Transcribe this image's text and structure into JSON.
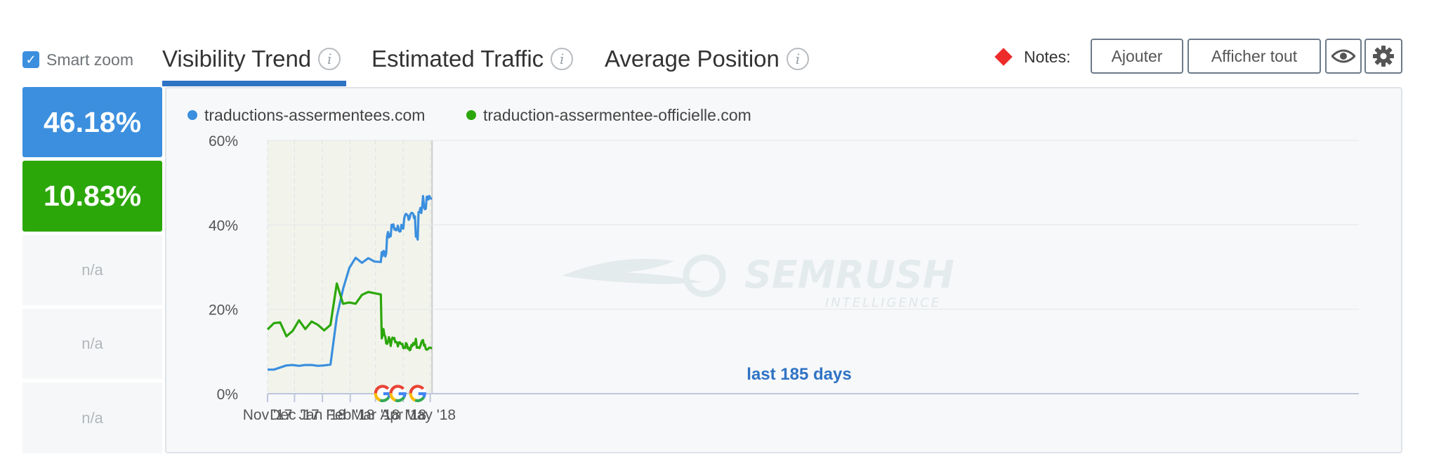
{
  "toolbar": {
    "smart_zoom_label": "Smart zoom",
    "smart_zoom_checked": true,
    "tabs": [
      {
        "label": "Visibility Trend",
        "active": true
      },
      {
        "label": "Estimated Traffic",
        "active": false
      },
      {
        "label": "Average Position",
        "active": false
      }
    ],
    "info_glyph": "i",
    "notes_label": "Notes:",
    "add_button": "Ajouter",
    "show_all_button": "Afficher tout",
    "eye_icon": "eye-icon",
    "settings_icon": "gear-icon"
  },
  "values": [
    {
      "text": "46.18%",
      "color": "#3b8fde"
    },
    {
      "text": "10.83%",
      "color": "#2ca70a"
    },
    {
      "text": "n/a"
    },
    {
      "text": "n/a"
    },
    {
      "text": "n/a"
    }
  ],
  "watermark": {
    "brand": "SEMRUSH",
    "sub": "INTELLIGENCE"
  },
  "chart_data": {
    "type": "line",
    "legend_placement": "top-left",
    "ylim": [
      0,
      60
    ],
    "y_ticks": [
      0,
      20,
      40,
      60
    ],
    "y_tick_labels": [
      "0%",
      "20%",
      "40%",
      "60%"
    ],
    "x_ticks": [
      "2017-11-01",
      "2017-12-01",
      "2018-01-01",
      "2018-02-01",
      "2018-03-01",
      "2018-04-01",
      "2018-05-01"
    ],
    "x_tick_labels": [
      "Nov '17",
      "Dec '17",
      "Jan '18",
      "Feb '18",
      "Mar '18",
      "Apr '18",
      "May '18"
    ],
    "x_range": [
      "2017-11-01",
      "2018-05-04"
    ],
    "annotation": "last 185 days",
    "update_markers": [
      "2018-03-09",
      "2018-03-26",
      "2018-04-17"
    ],
    "series": [
      {
        "name": "traductions-assermentees.com",
        "color": "#3b8fde",
        "points": [
          [
            "2017-11-01",
            5.7
          ],
          [
            "2017-11-08",
            5.7
          ],
          [
            "2017-11-15",
            6.2
          ],
          [
            "2017-11-22",
            6.7
          ],
          [
            "2017-11-29",
            6.8
          ],
          [
            "2017-12-06",
            6.6
          ],
          [
            "2017-12-13",
            6.8
          ],
          [
            "2017-12-20",
            6.8
          ],
          [
            "2017-12-27",
            6.6
          ],
          [
            "2018-01-03",
            6.7
          ],
          [
            "2018-01-10",
            6.9
          ],
          [
            "2018-01-17",
            18.2
          ],
          [
            "2018-01-24",
            24.8
          ],
          [
            "2018-01-31",
            29.8
          ],
          [
            "2018-02-07",
            32.2
          ],
          [
            "2018-02-14",
            31.0
          ],
          [
            "2018-02-21",
            32.1
          ],
          [
            "2018-02-28",
            31.3
          ],
          [
            "2018-03-07",
            31.2
          ],
          [
            "2018-03-08",
            33.5
          ],
          [
            "2018-03-09",
            32.6
          ],
          [
            "2018-03-10",
            33.8
          ],
          [
            "2018-03-11",
            33.6
          ],
          [
            "2018-03-12",
            32.5
          ],
          [
            "2018-03-13",
            33.3
          ],
          [
            "2018-03-14",
            37.3
          ],
          [
            "2018-03-15",
            38.3
          ],
          [
            "2018-03-16",
            37.0
          ],
          [
            "2018-03-17",
            37.8
          ],
          [
            "2018-03-18",
            37.3
          ],
          [
            "2018-03-19",
            40.0
          ],
          [
            "2018-03-20",
            39.5
          ],
          [
            "2018-03-21",
            40.1
          ],
          [
            "2018-03-22",
            38.9
          ],
          [
            "2018-03-23",
            39.1
          ],
          [
            "2018-03-24",
            38.7
          ],
          [
            "2018-03-25",
            39.0
          ],
          [
            "2018-03-26",
            39.8
          ],
          [
            "2018-03-27",
            38.6
          ],
          [
            "2018-03-28",
            38.4
          ],
          [
            "2018-03-29",
            38.5
          ],
          [
            "2018-03-30",
            40.0
          ],
          [
            "2018-03-31",
            39.3
          ],
          [
            "2018-04-01",
            39.1
          ],
          [
            "2018-04-02",
            41.5
          ],
          [
            "2018-04-03",
            42.3
          ],
          [
            "2018-04-04",
            42.6
          ],
          [
            "2018-04-05",
            42.4
          ],
          [
            "2018-04-06",
            42.2
          ],
          [
            "2018-04-07",
            41.2
          ],
          [
            "2018-04-08",
            41.5
          ],
          [
            "2018-04-09",
            42.5
          ],
          [
            "2018-04-10",
            42.8
          ],
          [
            "2018-04-11",
            42.8
          ],
          [
            "2018-04-12",
            42.6
          ],
          [
            "2018-04-13",
            41.6
          ],
          [
            "2018-04-14",
            42.0
          ],
          [
            "2018-04-15",
            37.2
          ],
          [
            "2018-04-16",
            37.3
          ],
          [
            "2018-04-17",
            36.5
          ],
          [
            "2018-04-18",
            43.0
          ],
          [
            "2018-04-19",
            43.0
          ],
          [
            "2018-04-20",
            44.0
          ],
          [
            "2018-04-21",
            42.8
          ],
          [
            "2018-04-22",
            44.2
          ],
          [
            "2018-04-23",
            46.8
          ],
          [
            "2018-04-24",
            44.5
          ],
          [
            "2018-04-25",
            43.7
          ],
          [
            "2018-04-26",
            43.8
          ],
          [
            "2018-04-27",
            46.6
          ],
          [
            "2018-04-28",
            46.7
          ],
          [
            "2018-04-29",
            46.0
          ],
          [
            "2018-04-30",
            46.8
          ],
          [
            "2018-05-01",
            46.3
          ],
          [
            "2018-05-02",
            46.2
          ],
          [
            "2018-05-03",
            46.18
          ]
        ]
      },
      {
        "name": "traduction-assermentee-officielle.com",
        "color": "#2ca70a",
        "points": [
          [
            "2017-11-01",
            15.2
          ],
          [
            "2017-11-08",
            16.7
          ],
          [
            "2017-11-15",
            16.9
          ],
          [
            "2017-11-22",
            13.6
          ],
          [
            "2017-11-29",
            14.9
          ],
          [
            "2017-12-06",
            17.4
          ],
          [
            "2017-12-13",
            15.3
          ],
          [
            "2017-12-20",
            17.1
          ],
          [
            "2017-12-27",
            16.3
          ],
          [
            "2018-01-03",
            15.0
          ],
          [
            "2018-01-10",
            16.3
          ],
          [
            "2018-01-17",
            26.1
          ],
          [
            "2018-01-24",
            21.3
          ],
          [
            "2018-01-31",
            21.6
          ],
          [
            "2018-02-07",
            21.3
          ],
          [
            "2018-02-14",
            23.4
          ],
          [
            "2018-02-21",
            24.1
          ],
          [
            "2018-02-28",
            23.8
          ],
          [
            "2018-03-07",
            23.5
          ],
          [
            "2018-03-08",
            13.1
          ],
          [
            "2018-03-09",
            13.8
          ],
          [
            "2018-03-10",
            15.3
          ],
          [
            "2018-03-11",
            13.9
          ],
          [
            "2018-03-12",
            13.5
          ],
          [
            "2018-03-13",
            11.9
          ],
          [
            "2018-03-14",
            11.8
          ],
          [
            "2018-03-15",
            12.3
          ],
          [
            "2018-03-16",
            13.4
          ],
          [
            "2018-03-17",
            12.8
          ],
          [
            "2018-03-18",
            11.3
          ],
          [
            "2018-03-19",
            12.6
          ],
          [
            "2018-03-20",
            13.3
          ],
          [
            "2018-03-21",
            13.0
          ],
          [
            "2018-03-22",
            13.2
          ],
          [
            "2018-03-23",
            12.2
          ],
          [
            "2018-03-24",
            12.3
          ],
          [
            "2018-03-25",
            12.1
          ],
          [
            "2018-03-26",
            11.2
          ],
          [
            "2018-03-27",
            12.1
          ],
          [
            "2018-03-28",
            12.2
          ],
          [
            "2018-03-29",
            11.9
          ],
          [
            "2018-03-30",
            11.7
          ],
          [
            "2018-03-31",
            11.8
          ],
          [
            "2018-04-01",
            10.8
          ],
          [
            "2018-04-02",
            10.9
          ],
          [
            "2018-04-03",
            10.8
          ],
          [
            "2018-04-04",
            12.0
          ],
          [
            "2018-04-05",
            11.7
          ],
          [
            "2018-04-06",
            10.7
          ],
          [
            "2018-04-07",
            10.9
          ],
          [
            "2018-04-08",
            10.3
          ],
          [
            "2018-04-09",
            10.4
          ],
          [
            "2018-04-10",
            11.5
          ],
          [
            "2018-04-11",
            11.3
          ],
          [
            "2018-04-12",
            12.0
          ],
          [
            "2018-04-13",
            11.6
          ],
          [
            "2018-04-14",
            11.9
          ],
          [
            "2018-04-15",
            13.0
          ],
          [
            "2018-04-16",
            10.9
          ],
          [
            "2018-04-17",
            10.9
          ],
          [
            "2018-04-18",
            11.0
          ],
          [
            "2018-04-19",
            10.8
          ],
          [
            "2018-04-20",
            11.3
          ],
          [
            "2018-04-21",
            12.1
          ],
          [
            "2018-04-22",
            12.6
          ],
          [
            "2018-04-23",
            12.7
          ],
          [
            "2018-04-24",
            11.4
          ],
          [
            "2018-04-25",
            11.6
          ],
          [
            "2018-04-26",
            10.6
          ],
          [
            "2018-04-27",
            10.4
          ],
          [
            "2018-04-28",
            10.5
          ],
          [
            "2018-04-29",
            10.7
          ],
          [
            "2018-04-30",
            10.9
          ],
          [
            "2018-05-01",
            10.9
          ],
          [
            "2018-05-02",
            10.8
          ],
          [
            "2018-05-03",
            10.83
          ]
        ]
      }
    ]
  }
}
